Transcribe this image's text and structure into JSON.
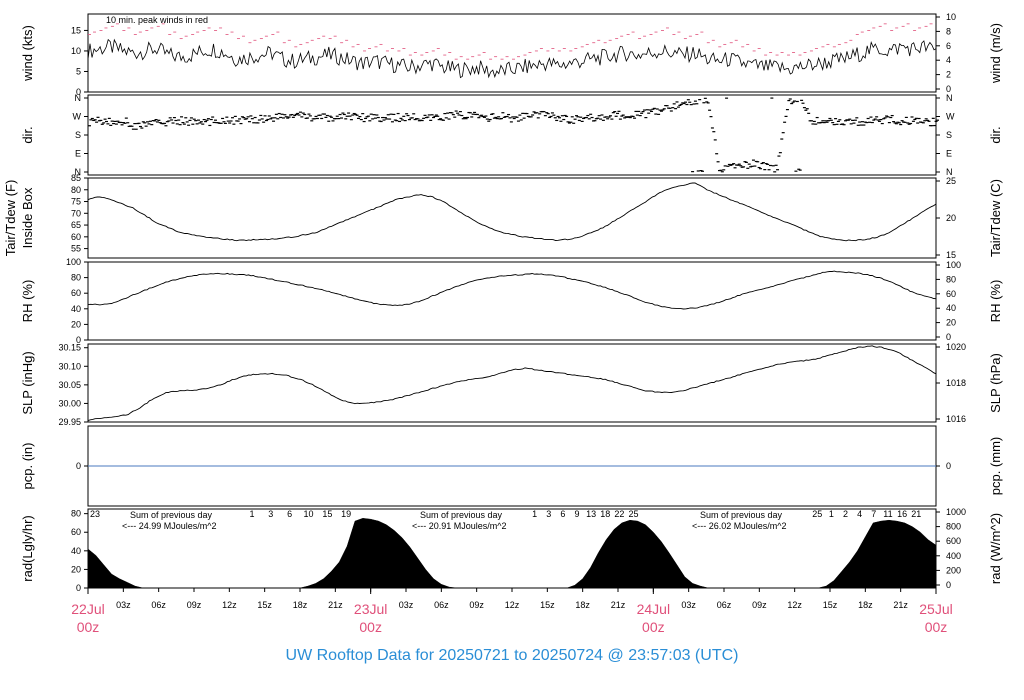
{
  "title": "UW Rooftop Data for 20250721  to  20250724 @ 23:57:03  (UTC)",
  "colors": {
    "wind": "#000000",
    "peak": "#e0507a",
    "pcp": "#4a7abf",
    "rad_note": "#9933cc",
    "date": "#e0507a",
    "title": "#2a8ed6"
  },
  "chart_data": [
    {
      "name": "wind",
      "type": "line",
      "ylabel_left": "wind (kts)",
      "ylabel_right": "wind (m/s)",
      "left_ticks": [
        "0",
        "5",
        "10",
        "15"
      ],
      "right_ticks": [
        "0",
        "2",
        "4",
        "6",
        "8",
        "10"
      ],
      "ylim": [
        0,
        19
      ],
      "annotation": "10 min. peak winds in red",
      "series": [
        {
          "values": [
            10,
            10.5,
            11,
            10,
            9.5,
            10,
            10.5,
            9,
            8.5,
            9,
            10,
            10.5,
            9.5,
            8,
            8.5,
            9,
            9.5,
            8,
            7.5,
            8,
            8.5,
            9,
            8.5,
            7.5,
            7,
            7.5,
            7,
            6.5,
            6,
            6.5,
            7,
            6,
            5.5,
            5.5,
            6,
            5,
            5,
            5.5,
            6,
            6.5,
            7,
            6.5,
            7,
            7.5,
            8,
            8.5,
            9,
            9.5,
            9,
            9.5,
            10,
            9.5,
            9,
            9.5,
            8,
            7.5,
            8,
            7,
            6.5,
            6,
            6,
            5.5,
            6,
            6.5,
            7,
            7.5,
            8,
            9,
            10,
            10.5,
            10,
            11,
            10.5,
            11,
            10
          ]
        },
        {
          "values": [
            14,
            15,
            16,
            15,
            14,
            15,
            16,
            14,
            13,
            14,
            15,
            15,
            14,
            13,
            12,
            13,
            14,
            12,
            11,
            12,
            13,
            13,
            12,
            11,
            10,
            11,
            10,
            10,
            9,
            9,
            10,
            9,
            8,
            8,
            9,
            8,
            8,
            8,
            9,
            10,
            10,
            10,
            10,
            11,
            12,
            12,
            13,
            14,
            13,
            14,
            15,
            14,
            13,
            14,
            12,
            11,
            12,
            11,
            10,
            9,
            9,
            9,
            9,
            10,
            11,
            11,
            12,
            14,
            15,
            16,
            15,
            16,
            15,
            16,
            15
          ]
        }
      ]
    },
    {
      "name": "direction",
      "type": "scatter",
      "ylabel_left": "dir.",
      "ylabel_right": "dir.",
      "left_ticks": [
        "N",
        "E",
        "S",
        "W",
        "N"
      ],
      "right_ticks": [
        "N",
        "E",
        "S",
        "W",
        "N"
      ],
      "ylim": [
        0,
        360
      ],
      "series": [
        {
          "values": [
            245,
            250,
            240,
            250,
            220,
            235,
            240,
            245,
            250,
            245,
            240,
            250,
            255,
            250,
            255,
            260,
            265,
            270,
            275,
            270,
            265,
            260,
            270,
            275,
            265,
            270,
            260,
            265,
            270,
            255,
            260,
            270,
            280,
            275,
            270,
            265,
            270,
            260,
            270,
            275,
            280,
            265,
            255,
            260,
            265,
            270,
            275,
            280,
            275,
            290,
            300,
            320,
            345,
            350,
            355,
            10,
            20,
            30,
            40,
            25,
            15,
            350,
            355,
            250,
            245,
            250,
            240,
            245,
            250,
            250,
            255,
            245,
            250,
            240,
            245
          ]
        }
      ]
    },
    {
      "name": "temperature",
      "type": "line",
      "ylabel_left": "Tair/Tdew (F)",
      "ylabel_left2": "Inside Box",
      "ylabel_right": "Tair/Tdew (C)",
      "left_ticks": [
        "55",
        "60",
        "65",
        "70",
        "75",
        "80",
        "85"
      ],
      "right_ticks": [
        "15",
        "20",
        "25"
      ],
      "ylim": [
        51,
        85
      ],
      "series": [
        {
          "values": [
            76,
            77,
            76,
            74,
            72,
            69,
            66,
            64,
            62,
            61,
            60,
            59.5,
            59,
            58.5,
            58.5,
            59,
            59,
            59.5,
            60,
            61,
            62,
            64,
            66,
            68,
            70,
            72,
            74,
            76,
            77,
            78,
            77,
            75,
            72,
            69,
            66,
            64,
            62,
            61,
            60,
            59.5,
            59,
            58.5,
            59,
            60,
            62,
            64,
            67,
            70,
            73,
            76,
            79,
            81,
            82,
            83,
            80,
            78,
            76,
            74,
            72,
            70,
            68,
            66,
            64,
            62,
            60,
            59,
            58.5,
            58.5,
            59,
            60,
            62,
            65,
            68,
            71,
            74
          ]
        }
      ]
    },
    {
      "name": "rh",
      "type": "line",
      "ylabel_left": "RH (%)",
      "ylabel_right": "RH (%)",
      "left_ticks": [
        "0",
        "20",
        "40",
        "60",
        "80",
        "100"
      ],
      "right_ticks": [
        "0",
        "20",
        "40",
        "60",
        "80",
        "100"
      ],
      "ylim": [
        0,
        100
      ],
      "series": [
        {
          "values": [
            46,
            45,
            47,
            52,
            58,
            64,
            70,
            75,
            79,
            82,
            84,
            85,
            85,
            84,
            83,
            81,
            78,
            75,
            72,
            69,
            66,
            62,
            58,
            54,
            50,
            47,
            45,
            44,
            46,
            50,
            56,
            62,
            68,
            73,
            77,
            80,
            82,
            83,
            84,
            85,
            84,
            82,
            79,
            76,
            72,
            68,
            63,
            58,
            52,
            47,
            43,
            41,
            40,
            41,
            44,
            48,
            53,
            58,
            62,
            66,
            70,
            74,
            78,
            82,
            86,
            88,
            87,
            86,
            84,
            80,
            75,
            68,
            61,
            56,
            53
          ]
        }
      ]
    },
    {
      "name": "slp",
      "type": "line",
      "ylabel_left": "SLP (inHg)",
      "ylabel_right": "SLP (hPa)",
      "left_ticks": [
        "29.95",
        "30.00",
        "30.05",
        "30.10",
        "30.15"
      ],
      "right_ticks": [
        "1016",
        "1018",
        "1020"
      ],
      "ylim": [
        29.95,
        30.16
      ],
      "series": [
        {
          "values": [
            29.955,
            29.96,
            29.965,
            29.97,
            29.99,
            30.015,
            30.03,
            30.035,
            30.035,
            30.04,
            30.05,
            30.065,
            30.075,
            30.08,
            30.08,
            30.075,
            30.065,
            30.05,
            30.03,
            30.01,
            30.0,
            30.0,
            30.005,
            30.01,
            30.02,
            30.03,
            30.04,
            30.05,
            30.06,
            30.065,
            30.07,
            30.08,
            30.09,
            30.095,
            30.09,
            30.085,
            30.08,
            30.075,
            30.07,
            30.065,
            30.055,
            30.045,
            30.035,
            30.03,
            30.03,
            30.035,
            30.045,
            30.055,
            30.065,
            30.075,
            30.085,
            30.095,
            30.105,
            30.11,
            30.115,
            30.12,
            30.13,
            30.14,
            30.15,
            30.155,
            30.15,
            30.14,
            30.12,
            30.1,
            30.08
          ]
        }
      ]
    },
    {
      "name": "precip",
      "type": "line",
      "ylabel_left": "pcp. (in)",
      "ylabel_right": "pcp. (mm)",
      "left_ticks": [
        "0"
      ],
      "right_ticks": [
        "0"
      ],
      "ylim": [
        -1,
        1
      ],
      "series": [
        {
          "values": [
            0,
            0
          ]
        }
      ]
    },
    {
      "name": "radiation",
      "type": "area",
      "ylabel_left": "rad(Lgly/hr)",
      "ylabel_right": "rad (W/m^2)",
      "left_ticks": [
        "0",
        "20",
        "40",
        "60",
        "80"
      ],
      "right_ticks": [
        "0",
        "200",
        "400",
        "600",
        "800",
        "1000"
      ],
      "ylim": [
        0,
        85
      ],
      "notes": [
        {
          "line1": "Sum of previous day",
          "line2": "<--- 24.99 MJoules/m^2"
        },
        {
          "line1": "Sum of previous day",
          "line2": "<--- 20.91 MJoules/m^2"
        },
        {
          "line1": "Sum of previous day",
          "line2": "<--- 26.02 MJoules/m^2"
        }
      ],
      "hour_marks": [
        {
          "day": 0,
          "labels": [
            "23"
          ]
        },
        {
          "day": 1,
          "labels": [
            "1",
            "3",
            "6",
            "10",
            "15",
            "19"
          ]
        },
        {
          "day": 2,
          "labels": [
            "1",
            "3",
            "6",
            "9",
            "13",
            "18",
            "22",
            "25"
          ]
        },
        {
          "day": 3,
          "labels": [
            "25",
            "1",
            "2",
            "4",
            "7",
            "11",
            "16",
            "21"
          ]
        }
      ],
      "series": [
        {
          "values": [
            42,
            35,
            25,
            15,
            10,
            6,
            2,
            0,
            0,
            0,
            0,
            0,
            0,
            0,
            0,
            0,
            0,
            0,
            0,
            0,
            0,
            0,
            0,
            0,
            0,
            0,
            0,
            0,
            2,
            5,
            10,
            18,
            28,
            45,
            72,
            75,
            74,
            72,
            68,
            62,
            54,
            44,
            32,
            20,
            10,
            4,
            1,
            0,
            0,
            0,
            0,
            0,
            0,
            0,
            0,
            0,
            0,
            0,
            0,
            0,
            0,
            0,
            3,
            10,
            22,
            38,
            52,
            63,
            70,
            73,
            72,
            68,
            60,
            50,
            38,
            25,
            12,
            5,
            2,
            0,
            0,
            0,
            0,
            0,
            0,
            0,
            0,
            0,
            0,
            0,
            0,
            0,
            0,
            0,
            2,
            8,
            18,
            28,
            40,
            55,
            70,
            72,
            73,
            72,
            70,
            66,
            60,
            52,
            46
          ]
        }
      ]
    }
  ],
  "xaxis": {
    "hour_ticks": [
      "03z",
      "06z",
      "09z",
      "12z",
      "15z",
      "18z",
      "21z"
    ],
    "dates": [
      {
        "date": "22Jul",
        "hour": "00z"
      },
      {
        "date": "23Jul",
        "hour": "00z"
      },
      {
        "date": "24Jul",
        "hour": "00z"
      },
      {
        "date": "25Jul",
        "hour": "00z"
      }
    ]
  }
}
